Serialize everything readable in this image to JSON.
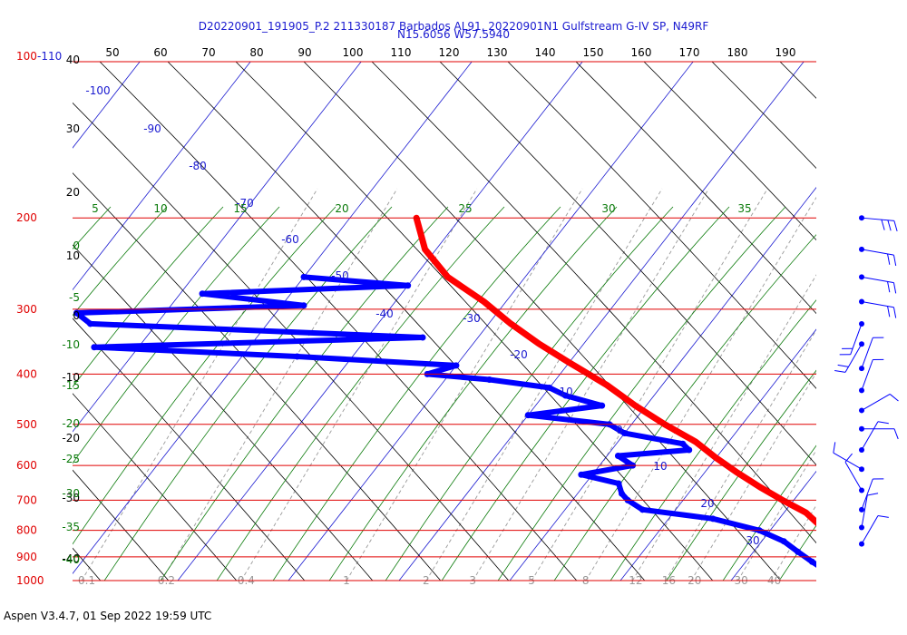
{
  "chart_data": {
    "type": "skew-t",
    "title_line1": "D20220901_191905_P.2 211330187 Barbados AL91, 20220901N1 Gulfstream G-IV SP, N49RF",
    "title_line2": "N15.6056 W57.5940",
    "footer": "Aspen V3.4.7, 01 Sep 2022  19:59 UTC",
    "pressure_levels": [
      100,
      200,
      300,
      400,
      500,
      600,
      700,
      800,
      900,
      1000
    ],
    "pressure_labels": [
      "100-110",
      "200",
      "300",
      "400",
      "500",
      "600",
      "700",
      "800",
      "900",
      "1000"
    ],
    "top_temperature_ticks": [
      "50",
      "60",
      "70",
      "80",
      "90",
      "100",
      "110",
      "120",
      "130",
      "140",
      "150",
      "160",
      "170",
      "180",
      "190"
    ],
    "isotherm_labels": [
      "-100",
      "-90",
      "-80",
      "-70",
      "-60",
      "-50",
      "-40",
      "-30",
      "-20",
      "-10",
      "0",
      "10",
      "20",
      "30"
    ],
    "dry_adiabat_labels": [
      "40",
      "30",
      "20",
      "10",
      "0",
      "-10",
      "-20",
      "-30",
      "-40"
    ],
    "moist_adiabat_labels_top": [
      "5",
      "10",
      "15",
      "20",
      "25",
      "30",
      "35"
    ],
    "moist_adiabat_labels_left": [
      "0",
      "-5",
      "-10",
      "-15",
      "-20",
      "-25",
      "-30",
      "-35",
      "-40"
    ],
    "mixing_ratio_labels": [
      "0.1",
      "0.2",
      "0.4",
      "1",
      "2",
      "3",
      "5",
      "8",
      "12",
      "16",
      "20",
      "30",
      "40"
    ],
    "temperature_profile": [
      {
        "p": 200,
        "t": -44
      },
      {
        "p": 230,
        "t": -41
      },
      {
        "p": 260,
        "t": -37
      },
      {
        "p": 290,
        "t": -32
      },
      {
        "p": 320,
        "t": -28
      },
      {
        "p": 350,
        "t": -24
      },
      {
        "p": 380,
        "t": -20
      },
      {
        "p": 420,
        "t": -15
      },
      {
        "p": 460,
        "t": -11
      },
      {
        "p": 500,
        "t": -7
      },
      {
        "p": 540,
        "t": -3
      },
      {
        "p": 580,
        "t": 0
      },
      {
        "p": 620,
        "t": 3
      },
      {
        "p": 660,
        "t": 6
      },
      {
        "p": 700,
        "t": 9
      },
      {
        "p": 740,
        "t": 12
      },
      {
        "p": 780,
        "t": 14
      },
      {
        "p": 820,
        "t": 16
      },
      {
        "p": 860,
        "t": 18
      },
      {
        "p": 900,
        "t": 21
      },
      {
        "p": 940,
        "t": 24
      },
      {
        "p": 980,
        "t": 25
      },
      {
        "p": 1000,
        "t": 26
      }
    ],
    "dewpoint_profile": [
      {
        "p": 260,
        "t": -50
      },
      {
        "p": 270,
        "t": -40
      },
      {
        "p": 280,
        "t": -58
      },
      {
        "p": 295,
        "t": -48
      },
      {
        "p": 305,
        "t": -68
      },
      {
        "p": 320,
        "t": -66
      },
      {
        "p": 340,
        "t": -35
      },
      {
        "p": 355,
        "t": -64
      },
      {
        "p": 370,
        "t": -45
      },
      {
        "p": 385,
        "t": -30
      },
      {
        "p": 400,
        "t": -32
      },
      {
        "p": 410,
        "t": -26
      },
      {
        "p": 425,
        "t": -20
      },
      {
        "p": 440,
        "t": -18
      },
      {
        "p": 460,
        "t": -14
      },
      {
        "p": 480,
        "t": -20
      },
      {
        "p": 500,
        "t": -12
      },
      {
        "p": 520,
        "t": -10
      },
      {
        "p": 545,
        "t": -4
      },
      {
        "p": 560,
        "t": -3
      },
      {
        "p": 575,
        "t": -9
      },
      {
        "p": 600,
        "t": -7
      },
      {
        "p": 625,
        "t": -11
      },
      {
        "p": 650,
        "t": -7
      },
      {
        "p": 680,
        "t": -6
      },
      {
        "p": 700,
        "t": -5
      },
      {
        "p": 730,
        "t": -3
      },
      {
        "p": 760,
        "t": 4
      },
      {
        "p": 800,
        "t": 9
      },
      {
        "p": 840,
        "t": 12
      },
      {
        "p": 880,
        "t": 14
      },
      {
        "p": 920,
        "t": 16
      },
      {
        "p": 960,
        "t": 18
      },
      {
        "p": 1000,
        "t": 20
      }
    ],
    "wind_barbs": [
      {
        "p": 200,
        "dir": 95,
        "spd": 25
      },
      {
        "p": 230,
        "dir": 100,
        "spd": 20
      },
      {
        "p": 260,
        "dir": 100,
        "spd": 20
      },
      {
        "p": 290,
        "dir": 100,
        "spd": 20
      },
      {
        "p": 320,
        "dir": 200,
        "spd": 15
      },
      {
        "p": 350,
        "dir": 210,
        "spd": 15
      },
      {
        "p": 390,
        "dir": 20,
        "spd": 10
      },
      {
        "p": 430,
        "dir": 20,
        "spd": 10
      },
      {
        "p": 470,
        "dir": 60,
        "spd": 10
      },
      {
        "p": 510,
        "dir": 90,
        "spd": 10
      },
      {
        "p": 560,
        "dir": 30,
        "spd": 5
      },
      {
        "p": 610,
        "dir": 300,
        "spd": 10
      },
      {
        "p": 670,
        "dir": 330,
        "spd": 10
      },
      {
        "p": 730,
        "dir": 20,
        "spd": 10
      },
      {
        "p": 790,
        "dir": 10,
        "spd": 10
      },
      {
        "p": 850,
        "dir": 30,
        "spd": 10
      }
    ]
  },
  "colors": {
    "isobar": "#e00000",
    "isotherm": "#1a1ad0",
    "dry_adiabat": "#000000",
    "moist_adiabat": "#0a7a0a",
    "mixing_ratio": "#9a9a9a",
    "temperature": "#ff0000",
    "dewpoint": "#0000ff"
  }
}
